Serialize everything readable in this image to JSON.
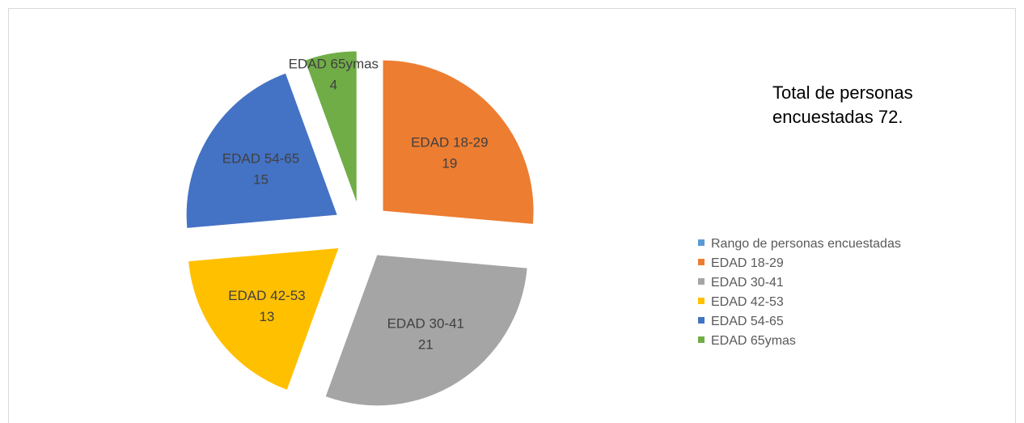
{
  "chart_data": {
    "type": "pie",
    "categories": [
      "Rango de personas encuestadas",
      "EDAD 18-29",
      "EDAD 30-41",
      "EDAD 42-53",
      "EDAD 54-65",
      "EDAD 65ymas"
    ],
    "values": [
      null,
      19,
      21,
      13,
      15,
      4
    ],
    "colors": [
      "#5b9bd5",
      "#ed7d31",
      "#a5a5a5",
      "#ffc000",
      "#4472c4",
      "#70ad47"
    ],
    "annotation": "Total de personas encuestadas 72.",
    "legend": "right"
  }
}
